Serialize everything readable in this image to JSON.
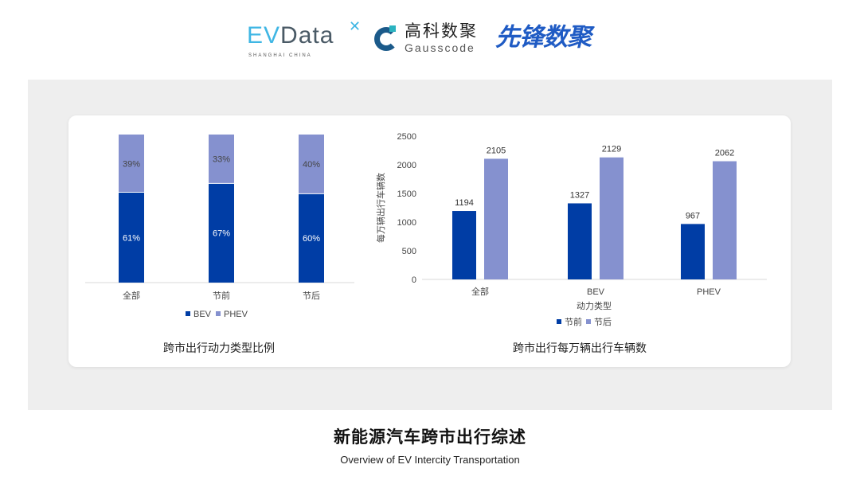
{
  "logos": {
    "evdata": {
      "text": "EVData",
      "sub": "SHANGHAI CHINA"
    },
    "gausscode": {
      "cn": "高科数聚",
      "en": "Gausscode"
    },
    "xianfeng": {
      "text": "先锋数聚"
    }
  },
  "colors": {
    "dark": "#003da5",
    "light": "#8591cf"
  },
  "chart_data": [
    {
      "type": "bar",
      "stacked": true,
      "title": "跨市出行动力类型比例",
      "categories": [
        "全部",
        "节前",
        "节后"
      ],
      "series": [
        {
          "name": "BEV",
          "values": [
            61,
            67,
            60
          ],
          "labels": [
            "61%",
            "67%",
            "60%"
          ]
        },
        {
          "name": "PHEV",
          "values": [
            39,
            33,
            40
          ],
          "labels": [
            "39%",
            "33%",
            "40%"
          ]
        }
      ],
      "ylim": [
        0,
        100
      ],
      "legend": "bottom"
    },
    {
      "type": "bar",
      "title": "跨市出行每万辆出行车辆数",
      "xlabel": "动力类型",
      "ylabel": "每万辆出行车辆数",
      "categories": [
        "全部",
        "BEV",
        "PHEV"
      ],
      "series": [
        {
          "name": "节前",
          "values": [
            1194,
            1327,
            967
          ]
        },
        {
          "name": "节后",
          "values": [
            2105,
            2129,
            2062
          ]
        }
      ],
      "yticks": [
        0,
        500,
        1000,
        1500,
        2000,
        2500
      ],
      "ylim": [
        0,
        2500
      ],
      "legend": "bottom"
    }
  ],
  "footer": {
    "title": "新能源汽车跨市出行综述",
    "subtitle": "Overview of EV Intercity Transportation"
  }
}
